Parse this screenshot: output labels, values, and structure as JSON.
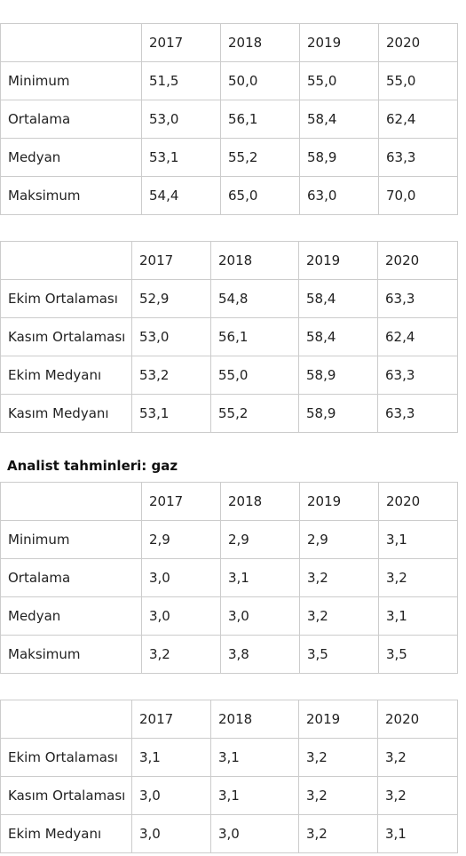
{
  "table1": {
    "headers": [
      "",
      "2017",
      "2018",
      "2019",
      "2020"
    ],
    "rows": [
      [
        "Minimum",
        "51,5",
        "50,0",
        "55,0",
        "55,0"
      ],
      [
        "Ortalama",
        "53,0",
        "56,1",
        "58,4",
        "62,4"
      ],
      [
        "Medyan",
        "53,1",
        "55,2",
        "58,9",
        "63,3"
      ],
      [
        "Maksimum",
        "54,4",
        "65,0",
        "63,0",
        "70,0"
      ]
    ]
  },
  "table2": {
    "headers": [
      "",
      "2017",
      "2018",
      "2019",
      "2020"
    ],
    "rows": [
      [
        "Ekim Ortalaması",
        "52,9",
        "54,8",
        "58,4",
        "63,3"
      ],
      [
        "Kasım Ortalaması",
        "53,0",
        "56,1",
        "58,4",
        "62,4"
      ],
      [
        "Ekim Medyanı",
        "53,2",
        "55,0",
        "58,9",
        "63,3"
      ],
      [
        "Kasım Medyanı",
        "53,1",
        "55,2",
        "58,9",
        "63,3"
      ]
    ]
  },
  "section_heading": "Analist tahminleri: gaz",
  "table3": {
    "headers": [
      "",
      "2017",
      "2018",
      "2019",
      "2020"
    ],
    "rows": [
      [
        "Minimum",
        "2,9",
        "2,9",
        "2,9",
        "3,1"
      ],
      [
        "Ortalama",
        "3,0",
        "3,1",
        "3,2",
        "3,2"
      ],
      [
        "Medyan",
        "3,0",
        "3,0",
        "3,2",
        "3,1"
      ],
      [
        "Maksimum",
        "3,2",
        "3,8",
        "3,5",
        "3,5"
      ]
    ]
  },
  "table4": {
    "headers": [
      "",
      "2017",
      "2018",
      "2019",
      "2020"
    ],
    "rows": [
      [
        "Ekim Ortalaması",
        "3,1",
        "3,1",
        "3,2",
        "3,2"
      ],
      [
        "Kasım Ortalaması",
        "3,0",
        "3,1",
        "3,2",
        "3,2"
      ],
      [
        "Ekim Medyanı",
        "3,0",
        "3,0",
        "3,2",
        "3,1"
      ]
    ]
  }
}
